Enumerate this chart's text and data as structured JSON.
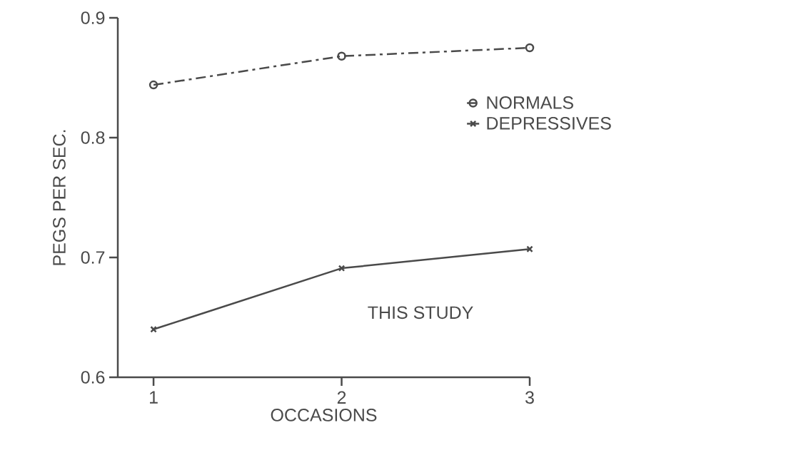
{
  "chart_data": {
    "type": "line",
    "xlabel": "OCCASIONS",
    "ylabel": "PEGS PER SEC.",
    "x": [
      1,
      2,
      3
    ],
    "series": [
      {
        "name": "NORMALS",
        "color": "#4a4a4a",
        "values": [
          0.844,
          0.868,
          0.875
        ],
        "marker": "circle",
        "line_style": "dashed"
      },
      {
        "name": "DEPRESSIVES",
        "color": "#4a4a4a",
        "values": [
          0.64,
          0.691,
          0.707
        ],
        "marker": "cross",
        "line_style": "solid"
      }
    ],
    "xlim": [
      0.81,
      3
    ],
    "ylim": [
      0.6,
      0.9
    ],
    "xticks": [
      1,
      2,
      3
    ],
    "yticks": [
      0.6,
      0.7,
      0.8,
      0.9
    ],
    "grid": false,
    "legend": "right",
    "annotations": [
      "THIS STUDY"
    ]
  }
}
